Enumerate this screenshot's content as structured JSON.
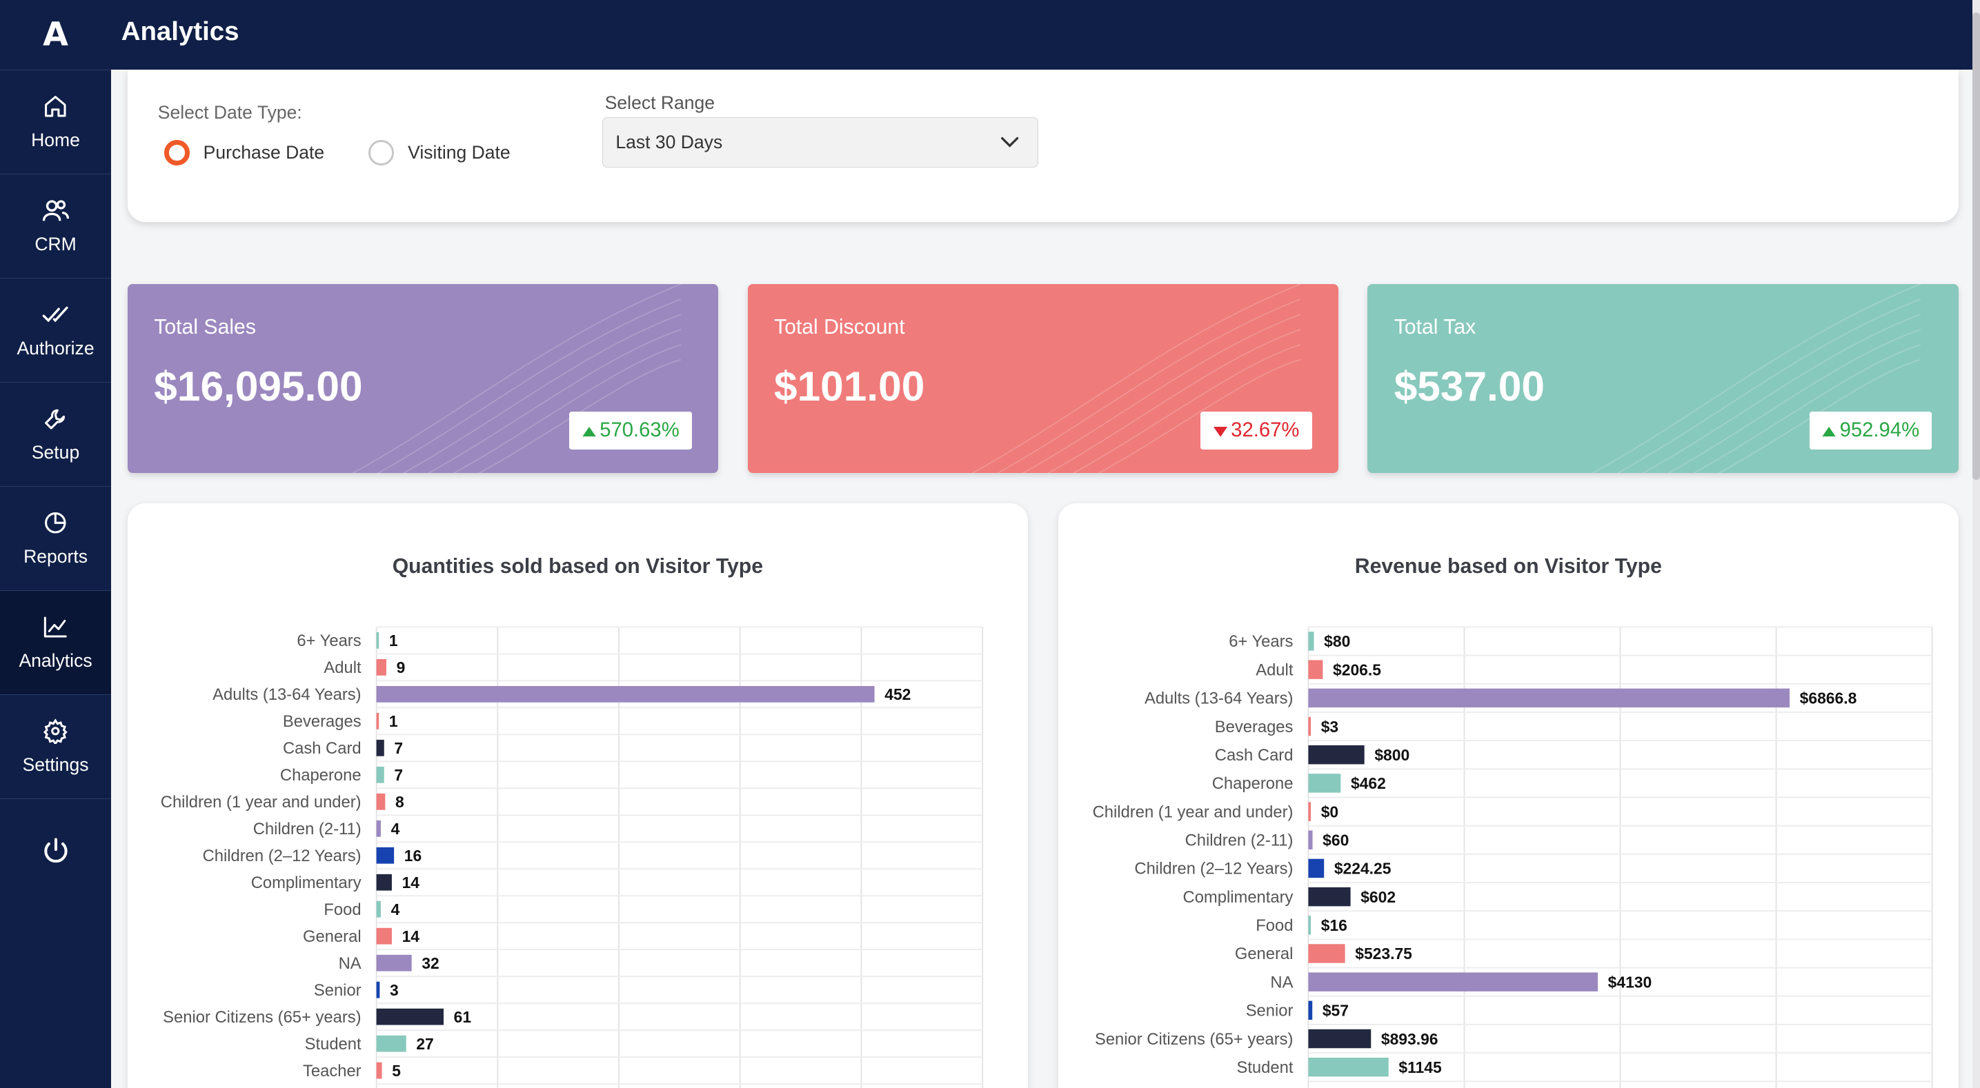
{
  "app": {
    "logo": "A",
    "title": "Analytics"
  },
  "sidebar": {
    "items": [
      {
        "label": "Home",
        "icon": "home-icon"
      },
      {
        "label": "CRM",
        "icon": "users-icon"
      },
      {
        "label": "Authorize",
        "icon": "double-check-icon"
      },
      {
        "label": "Setup",
        "icon": "wrench-icon"
      },
      {
        "label": "Reports",
        "icon": "pie-chart-icon"
      },
      {
        "label": "Analytics",
        "icon": "line-chart-icon",
        "active": true
      },
      {
        "label": "Settings",
        "icon": "gear-icon"
      },
      {
        "label": "",
        "icon": "power-icon"
      }
    ]
  },
  "filters": {
    "date_type_label": "Select Date Type:",
    "options": [
      {
        "label": "Purchase Date",
        "selected": true
      },
      {
        "label": "Visiting Date",
        "selected": false
      }
    ],
    "range_label": "Select Range",
    "range_value": "Last 30 Days"
  },
  "stats": [
    {
      "label": "Total Sales",
      "value": "$16,095.00",
      "change": "570.63%",
      "direction": "up",
      "color": "#9b88bf"
    },
    {
      "label": "Total Discount",
      "value": "$101.00",
      "change": "32.67%",
      "direction": "down",
      "color": "#f07b7b"
    },
    {
      "label": "Total Tax",
      "value": "$537.00",
      "change": "952.94%",
      "direction": "up",
      "color": "#88c9bd"
    }
  ],
  "colors": {
    "sidebar": "#0f1f47",
    "accent_radio": "#f05a28",
    "teal": "#88c9bd",
    "salmon": "#f07b7b",
    "purple": "#9b88bf",
    "navy": "#232840",
    "blue": "#1743b0"
  },
  "chart_data": [
    {
      "type": "bar",
      "orientation": "horizontal",
      "title": "Quantities sold based on Visitor Type",
      "categories": [
        "6+ Years",
        "Adult",
        "Adults (13-64 Years)",
        "Beverages",
        "Cash Card",
        "Chaperone",
        "Children (1 year and under)",
        "Children (2-11)",
        "Children (2–12 Years)",
        "Complimentary",
        "Food",
        "General",
        "NA",
        "Senior",
        "Senior Citizens (65+ years)",
        "Student",
        "Teacher"
      ],
      "values": [
        1,
        9,
        452,
        1,
        7,
        7,
        8,
        4,
        16,
        14,
        4,
        14,
        32,
        3,
        61,
        27,
        5
      ],
      "data_labels": [
        "1",
        "9",
        "452",
        "1",
        "7",
        "7",
        "8",
        "4",
        "16",
        "14",
        "4",
        "14",
        "32",
        "3",
        "61",
        "27",
        "5"
      ],
      "bar_colors": [
        "#88c9bd",
        "#f07b7b",
        "#9b88bf",
        "#f07b7b",
        "#232840",
        "#88c9bd",
        "#f07b7b",
        "#9b88bf",
        "#1743b0",
        "#232840",
        "#88c9bd",
        "#f07b7b",
        "#9b88bf",
        "#1743b0",
        "#232840",
        "#88c9bd",
        "#f07b7b"
      ],
      "xlim": [
        0,
        550
      ],
      "grid": true
    },
    {
      "type": "bar",
      "orientation": "horizontal",
      "title": "Revenue based on Visitor Type",
      "categories": [
        "6+ Years",
        "Adult",
        "Adults (13-64 Years)",
        "Beverages",
        "Cash Card",
        "Chaperone",
        "Children (1 year and under)",
        "Children (2-11)",
        "Children (2–12 Years)",
        "Complimentary",
        "Food",
        "General",
        "NA",
        "Senior",
        "Senior Citizens (65+ years)",
        "Student"
      ],
      "values": [
        80,
        206.5,
        6866.8,
        3,
        800,
        462,
        0,
        60,
        224.25,
        602,
        16,
        523.75,
        4130,
        57,
        893.96,
        1145
      ],
      "data_labels": [
        "$80",
        "$206.5",
        "$6866.8",
        "$3",
        "$800",
        "$462",
        "$0",
        "$60",
        "$224.25",
        "$602",
        "$16",
        "$523.75",
        "$4130",
        "$57",
        "$893.96",
        "$1145"
      ],
      "bar_colors": [
        "#88c9bd",
        "#f07b7b",
        "#9b88bf",
        "#f07b7b",
        "#232840",
        "#88c9bd",
        "#f07b7b",
        "#9b88bf",
        "#1743b0",
        "#232840",
        "#88c9bd",
        "#f07b7b",
        "#9b88bf",
        "#1743b0",
        "#232840",
        "#88c9bd"
      ],
      "xlim": [
        0,
        8900
      ],
      "grid": true
    }
  ]
}
